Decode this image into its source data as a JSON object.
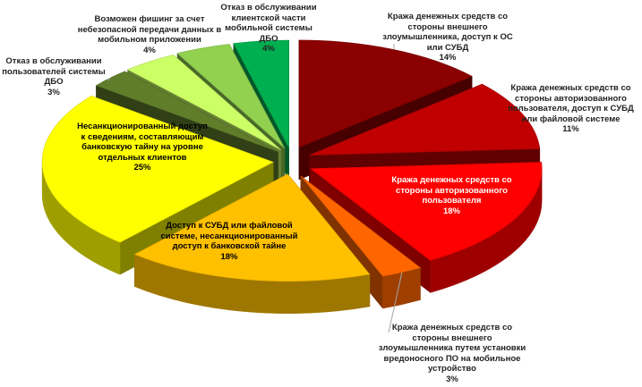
{
  "chart_data": {
    "type": "pie",
    "title": "",
    "style": "3d-exploded",
    "slices": [
      {
        "label": "Кража денежных средств со стороны внешнего злоумышленника, доступ к ОС или СУБД",
        "value": 14,
        "pct_label": "14%",
        "color": "#8b0000"
      },
      {
        "label": "Кража денежных средств со стороны авторизованного пользователя, доступ к СУБД или файловой системе",
        "value": 11,
        "pct_label": "11%",
        "color": "#c00000"
      },
      {
        "label": "Кража денежных средств со стороны авторизованного пользователя",
        "value": 18,
        "pct_label": "18%",
        "color": "#ff0000"
      },
      {
        "label": "Кража денежных средств со стороны внешнего злоумышленника путем установки вредоносного ПО на мобильное устройство",
        "value": 3,
        "pct_label": "3%",
        "color": "#ff6600"
      },
      {
        "label": "Доступ к СУБД или файловой системе, несанкционированный доступ к банковской тайне",
        "value": 18,
        "pct_label": "18%",
        "color": "#ffc000"
      },
      {
        "label": "Несанкционированный доступ к сведениям, составляющим банковскую тайну на уровне отдельных клиентов",
        "value": 25,
        "pct_label": "25%",
        "color": "#ffff00"
      },
      {
        "label": "Отказ в обслуживании пользователей системы ДБО",
        "value": 3,
        "pct_label": "3%",
        "color": "#607d2a"
      },
      {
        "label": "Возможен фишинг за счет небезопасной передачи данных в мобильном приложении",
        "value": 4,
        "pct_label": "4%",
        "color": "#ccff66"
      },
      {
        "label": "Отказ в обслуживании клиентской части мобильной системы ДБО",
        "value": 4,
        "pct_label": "4%",
        "color": "#92d050"
      },
      {
        "label": "",
        "value": 4,
        "pct_label": "",
        "color": "#00b050"
      }
    ]
  }
}
